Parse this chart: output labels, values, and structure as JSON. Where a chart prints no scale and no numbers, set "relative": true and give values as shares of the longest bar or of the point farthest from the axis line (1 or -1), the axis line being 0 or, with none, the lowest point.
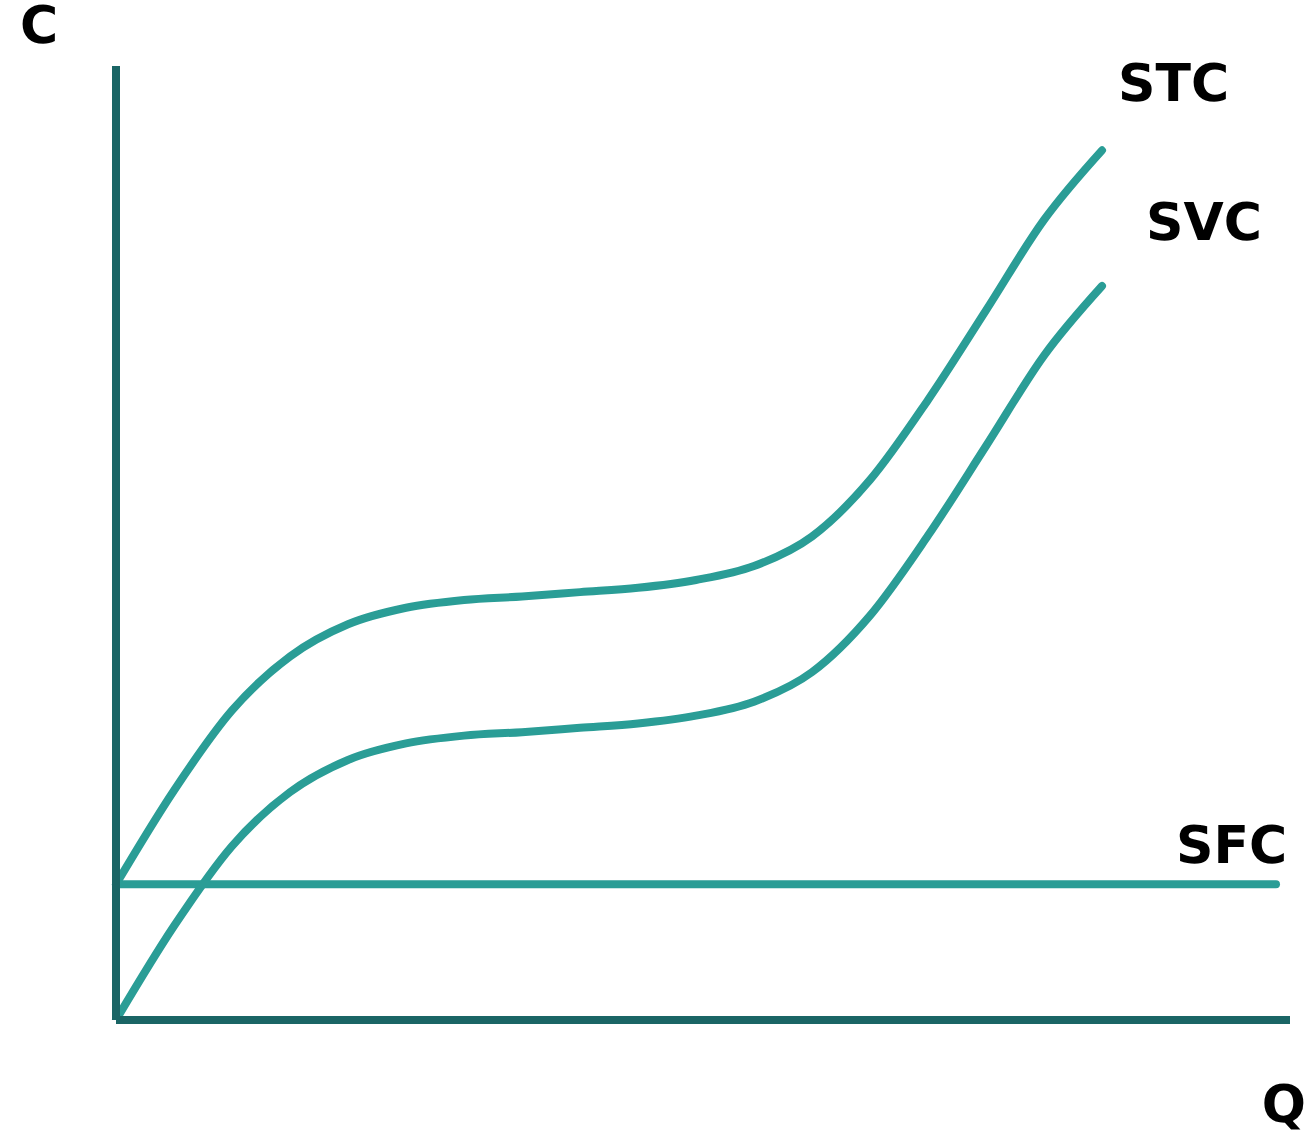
{
  "chart_data": {
    "type": "line",
    "relative": true,
    "xlabel": "Q",
    "ylabel": "C",
    "legend": false,
    "grid": false,
    "marker": "none",
    "line_style": "solid",
    "categories": [
      null,
      null,
      null,
      null,
      null,
      null,
      null,
      null,
      null,
      null,
      null,
      null,
      null,
      null,
      null,
      null,
      null,
      null,
      null,
      null,
      null
    ],
    "series": [
      {
        "name": "STC",
        "color": "#2a9d96",
        "values": [
          0.156,
          0.264,
          0.356,
          0.418,
          0.455,
          0.474,
          0.483,
          0.487,
          0.492,
          0.497,
          0.506,
          0.522,
          0.556,
          0.621,
          0.713,
          0.816,
          0.92,
          1,
          null,
          null,
          null
        ]
      },
      {
        "name": "SVC",
        "color": "#2a9d96",
        "values": [
          0,
          0.108,
          0.2,
          0.262,
          0.299,
          0.318,
          0.327,
          0.331,
          0.336,
          0.341,
          0.35,
          0.366,
          0.4,
          0.465,
          0.557,
          0.66,
          0.764,
          0.844,
          null,
          null,
          null
        ]
      },
      {
        "name": "SFC",
        "color": "#2a9d96",
        "values": [
          0.156,
          0.156,
          0.156,
          0.156,
          0.156,
          0.156,
          0.156,
          0.156,
          0.156,
          0.156,
          0.156,
          0.156,
          0.156,
          0.156,
          0.156,
          0.156,
          0.156,
          0.156,
          0.156,
          0.156,
          0.156
        ]
      }
    ]
  }
}
